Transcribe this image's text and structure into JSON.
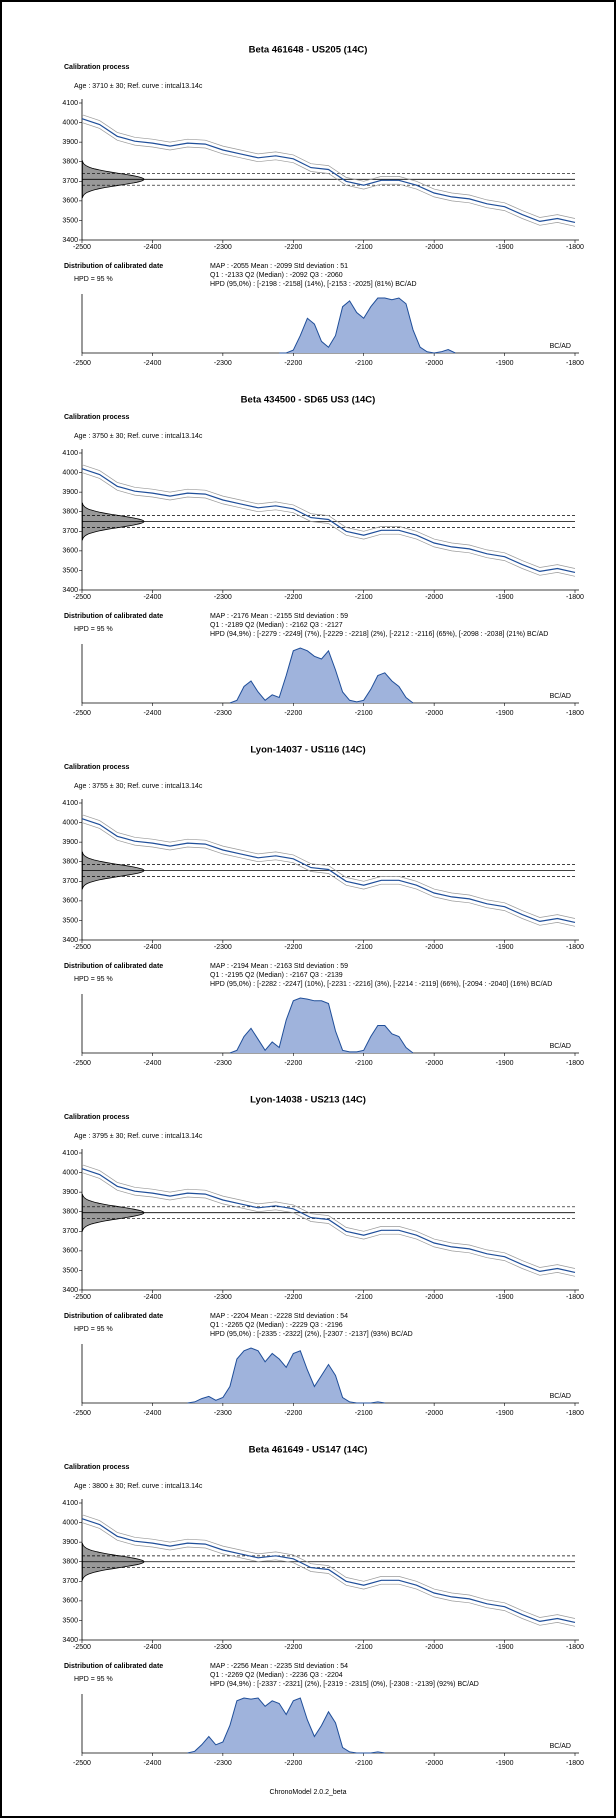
{
  "chart_data": [
    {
      "title": "Beta 461648 - US205 (14C)",
      "calibration": {
        "type": "line",
        "subtitle": "Calibration process",
        "note": "Age : 3710 ± 30; Ref. curve : intcal13.14c",
        "xlim": [
          -2500,
          -1800
        ],
        "ylim": [
          3400,
          4100
        ],
        "xticks": [
          -2500,
          -2400,
          -2300,
          -2200,
          -2100,
          -2000,
          -1900,
          -1800
        ],
        "yticks": [
          3400,
          3500,
          3600,
          3700,
          3800,
          3900,
          4000,
          4100
        ],
        "measurement": {
          "value": 3710,
          "error": 30,
          "color": "#999999"
        },
        "x": [
          -2500,
          -2475,
          -2450,
          -2425,
          -2400,
          -2375,
          -2350,
          -2325,
          -2300,
          -2275,
          -2250,
          -2225,
          -2200,
          -2175,
          -2150,
          -2125,
          -2100,
          -2075,
          -2050,
          -2025,
          -2000,
          -1975,
          -1950,
          -1925,
          -1900,
          -1875,
          -1850,
          -1825,
          -1800
        ],
        "series": [
          {
            "color": "#1f4e99",
            "band": 20,
            "band_color": "#9a9a9a",
            "values": [
              4020,
              3990,
              3930,
              3905,
              3895,
              3880,
              3895,
              3890,
              3860,
              3840,
              3820,
              3830,
              3815,
              3770,
              3760,
              3700,
              3680,
              3705,
              3705,
              3680,
              3640,
              3620,
              3610,
              3585,
              3570,
              3530,
              3495,
              3510,
              3490
            ]
          }
        ]
      },
      "distribution": {
        "type": "area",
        "subtitle": "Distribution of calibrated date",
        "hpd_label": "HPD = 95 %",
        "unit_label": "BC/AD",
        "stats": [
          "MAP : -2055 Mean : -2099 Std deviation : 51",
          "Q1 : -2133 Q2 (Median) : -2092 Q3 : -2060",
          "HPD (95,0%) : [-2198 : -2158] (14%), [-2153 : -2025] (81%) BC/AD"
        ],
        "xlim": [
          -2500,
          -1800
        ],
        "xticks": [
          -2500,
          -2400,
          -2300,
          -2200,
          -2100,
          -2000,
          -1900,
          -1800
        ],
        "color": "#9fb3dc",
        "line_color": "#1f4e99",
        "x": [
          -2220,
          -2210,
          -2200,
          -2190,
          -2180,
          -2170,
          -2160,
          -2150,
          -2140,
          -2130,
          -2120,
          -2110,
          -2100,
          -2090,
          -2080,
          -2070,
          -2060,
          -2050,
          -2040,
          -2030,
          -2020,
          -2010,
          -2000,
          -1990,
          -1980,
          -1970
        ],
        "values": [
          0,
          0,
          0.05,
          0.3,
          0.6,
          0.5,
          0.2,
          0.1,
          0.3,
          0.8,
          0.9,
          0.7,
          0.6,
          0.8,
          0.95,
          0.95,
          0.92,
          0.95,
          0.85,
          0.4,
          0.1,
          0.02,
          0,
          0.02,
          0.06,
          0
        ]
      }
    },
    {
      "title": "Beta 434500 - SD65 US3 (14C)",
      "calibration": {
        "type": "line",
        "subtitle": "Calibration process",
        "note": "Age : 3750 ± 30; Ref. curve : intcal13.14c",
        "xlim": [
          -2500,
          -1800
        ],
        "ylim": [
          3400,
          4100
        ],
        "xticks": [
          -2500,
          -2400,
          -2300,
          -2200,
          -2100,
          -2000,
          -1900,
          -1800
        ],
        "yticks": [
          3400,
          3500,
          3600,
          3700,
          3800,
          3900,
          4000,
          4100
        ],
        "measurement": {
          "value": 3750,
          "error": 30,
          "color": "#999999"
        },
        "x": [
          -2500,
          -2475,
          -2450,
          -2425,
          -2400,
          -2375,
          -2350,
          -2325,
          -2300,
          -2275,
          -2250,
          -2225,
          -2200,
          -2175,
          -2150,
          -2125,
          -2100,
          -2075,
          -2050,
          -2025,
          -2000,
          -1975,
          -1950,
          -1925,
          -1900,
          -1875,
          -1850,
          -1825,
          -1800
        ],
        "series": [
          {
            "color": "#1f4e99",
            "band": 20,
            "band_color": "#9a9a9a",
            "values": [
              4020,
              3990,
              3930,
              3905,
              3895,
              3880,
              3895,
              3890,
              3860,
              3840,
              3820,
              3830,
              3815,
              3770,
              3760,
              3700,
              3680,
              3705,
              3705,
              3680,
              3640,
              3620,
              3610,
              3585,
              3570,
              3530,
              3495,
              3510,
              3490
            ]
          }
        ]
      },
      "distribution": {
        "type": "area",
        "subtitle": "Distribution of calibrated date",
        "hpd_label": "HPD = 95 %",
        "unit_label": "BC/AD",
        "stats": [
          "MAP : -2176 Mean : -2155 Std deviation : 59",
          "Q1 : -2189 Q2 (Median) : -2162 Q3 : -2127",
          "HPD (94,9%) : [-2279 : -2249] (7%), [-2229 : -2218] (2%), [-2212 : -2116] (65%), [-2098 : -2038] (21%) BC/AD"
        ],
        "xlim": [
          -2500,
          -1800
        ],
        "xticks": [
          -2500,
          -2400,
          -2300,
          -2200,
          -2100,
          -2000,
          -1900,
          -1800
        ],
        "color": "#9fb3dc",
        "line_color": "#1f4e99",
        "x": [
          -2290,
          -2280,
          -2270,
          -2260,
          -2250,
          -2240,
          -2230,
          -2220,
          -2210,
          -2200,
          -2190,
          -2180,
          -2170,
          -2160,
          -2150,
          -2140,
          -2130,
          -2120,
          -2110,
          -2100,
          -2090,
          -2080,
          -2070,
          -2060,
          -2050,
          -2040,
          -2030
        ],
        "values": [
          0,
          0.05,
          0.3,
          0.4,
          0.2,
          0.05,
          0.15,
          0.1,
          0.5,
          0.95,
          1.0,
          0.95,
          0.85,
          0.8,
          0.95,
          0.6,
          0.2,
          0.05,
          0.02,
          0.05,
          0.25,
          0.5,
          0.55,
          0.4,
          0.3,
          0.1,
          0
        ]
      }
    },
    {
      "title": "Lyon-14037 - US116 (14C)",
      "calibration": {
        "type": "line",
        "subtitle": "Calibration process",
        "note": "Age : 3755 ± 30; Ref. curve : intcal13.14c",
        "xlim": [
          -2500,
          -1800
        ],
        "ylim": [
          3400,
          4100
        ],
        "xticks": [
          -2500,
          -2400,
          -2300,
          -2200,
          -2100,
          -2000,
          -1900,
          -1800
        ],
        "yticks": [
          3400,
          3500,
          3600,
          3700,
          3800,
          3900,
          4000,
          4100
        ],
        "measurement": {
          "value": 3755,
          "error": 30,
          "color": "#999999"
        },
        "x": [
          -2500,
          -2475,
          -2450,
          -2425,
          -2400,
          -2375,
          -2350,
          -2325,
          -2300,
          -2275,
          -2250,
          -2225,
          -2200,
          -2175,
          -2150,
          -2125,
          -2100,
          -2075,
          -2050,
          -2025,
          -2000,
          -1975,
          -1950,
          -1925,
          -1900,
          -1875,
          -1850,
          -1825,
          -1800
        ],
        "series": [
          {
            "color": "#1f4e99",
            "band": 20,
            "band_color": "#9a9a9a",
            "values": [
              4020,
              3990,
              3930,
              3905,
              3895,
              3880,
              3895,
              3890,
              3860,
              3840,
              3820,
              3830,
              3815,
              3770,
              3760,
              3700,
              3680,
              3705,
              3705,
              3680,
              3640,
              3620,
              3610,
              3585,
              3570,
              3530,
              3495,
              3510,
              3490
            ]
          }
        ]
      },
      "distribution": {
        "type": "area",
        "subtitle": "Distribution of calibrated date",
        "hpd_label": "HPD = 95 %",
        "unit_label": "BC/AD",
        "stats": [
          "MAP : -2194 Mean : -2163 Std deviation : 59",
          "Q1 : -2195 Q2 (Median) : -2167 Q3 : -2139",
          "HPD (95,0%) : [-2282 : -2247] (10%), [-2231 : -2216] (3%), [-2214 : -2119] (66%), [-2094 : -2040] (16%) BC/AD"
        ],
        "xlim": [
          -2500,
          -1800
        ],
        "xticks": [
          -2500,
          -2400,
          -2300,
          -2200,
          -2100,
          -2000,
          -1900,
          -1800
        ],
        "color": "#9fb3dc",
        "line_color": "#1f4e99",
        "x": [
          -2290,
          -2280,
          -2270,
          -2260,
          -2250,
          -2240,
          -2230,
          -2220,
          -2210,
          -2200,
          -2190,
          -2180,
          -2170,
          -2160,
          -2150,
          -2140,
          -2130,
          -2120,
          -2110,
          -2100,
          -2090,
          -2080,
          -2070,
          -2060,
          -2050,
          -2040,
          -2030
        ],
        "values": [
          0,
          0.05,
          0.3,
          0.45,
          0.25,
          0.05,
          0.2,
          0.1,
          0.6,
          0.95,
          1.0,
          0.98,
          0.95,
          0.95,
          0.9,
          0.4,
          0.05,
          0.02,
          0.02,
          0.05,
          0.3,
          0.5,
          0.5,
          0.35,
          0.3,
          0.1,
          0
        ]
      }
    },
    {
      "title": "Lyon-14038 - US213 (14C)",
      "calibration": {
        "type": "line",
        "subtitle": "Calibration process",
        "note": "Age : 3795 ± 30; Ref. curve : intcal13.14c",
        "xlim": [
          -2500,
          -1800
        ],
        "ylim": [
          3400,
          4100
        ],
        "xticks": [
          -2500,
          -2400,
          -2300,
          -2200,
          -2100,
          -2000,
          -1900,
          -1800
        ],
        "yticks": [
          3400,
          3500,
          3600,
          3700,
          3800,
          3900,
          4000,
          4100
        ],
        "measurement": {
          "value": 3795,
          "error": 30,
          "color": "#999999"
        },
        "x": [
          -2500,
          -2475,
          -2450,
          -2425,
          -2400,
          -2375,
          -2350,
          -2325,
          -2300,
          -2275,
          -2250,
          -2225,
          -2200,
          -2175,
          -2150,
          -2125,
          -2100,
          -2075,
          -2050,
          -2025,
          -2000,
          -1975,
          -1950,
          -1925,
          -1900,
          -1875,
          -1850,
          -1825,
          -1800
        ],
        "series": [
          {
            "color": "#1f4e99",
            "band": 20,
            "band_color": "#9a9a9a",
            "values": [
              4020,
              3990,
              3930,
              3905,
              3895,
              3880,
              3895,
              3890,
              3860,
              3840,
              3820,
              3830,
              3815,
              3770,
              3760,
              3700,
              3680,
              3705,
              3705,
              3680,
              3640,
              3620,
              3610,
              3585,
              3570,
              3530,
              3495,
              3510,
              3490
            ]
          }
        ]
      },
      "distribution": {
        "type": "area",
        "subtitle": "Distribution of calibrated date",
        "hpd_label": "HPD = 95 %",
        "unit_label": "BC/AD",
        "stats": [
          "MAP : -2204 Mean : -2228 Std deviation : 54",
          "Q1 : -2265 Q2 (Median) : -2229 Q3 : -2196",
          "HPD (95,0%) : [-2335 : -2322] (2%), [-2307 : -2137] (93%) BC/AD"
        ],
        "xlim": [
          -2500,
          -1800
        ],
        "xticks": [
          -2500,
          -2400,
          -2300,
          -2200,
          -2100,
          -2000,
          -1900,
          -1800
        ],
        "color": "#9fb3dc",
        "line_color": "#1f4e99",
        "x": [
          -2350,
          -2340,
          -2330,
          -2320,
          -2310,
          -2300,
          -2290,
          -2280,
          -2270,
          -2260,
          -2250,
          -2240,
          -2230,
          -2220,
          -2210,
          -2200,
          -2190,
          -2180,
          -2170,
          -2160,
          -2150,
          -2140,
          -2130,
          -2120,
          -2110,
          -2100,
          -2090,
          -2080,
          -2070
        ],
        "values": [
          0,
          0.02,
          0.08,
          0.12,
          0.05,
          0.1,
          0.3,
          0.8,
          0.95,
          1.0,
          0.95,
          0.75,
          0.9,
          0.8,
          0.65,
          0.9,
          0.95,
          0.6,
          0.3,
          0.5,
          0.7,
          0.5,
          0.1,
          0.02,
          0,
          0,
          0,
          0.02,
          0
        ]
      }
    },
    {
      "title": "Beta 461649 - US147 (14C)",
      "calibration": {
        "type": "line",
        "subtitle": "Calibration process",
        "note": "Age : 3800 ± 30; Ref. curve : intcal13.14c",
        "xlim": [
          -2500,
          -1800
        ],
        "ylim": [
          3400,
          4100
        ],
        "xticks": [
          -2500,
          -2400,
          -2300,
          -2200,
          -2100,
          -2000,
          -1900,
          -1800
        ],
        "yticks": [
          3400,
          3500,
          3600,
          3700,
          3800,
          3900,
          4000,
          4100
        ],
        "measurement": {
          "value": 3800,
          "error": 30,
          "color": "#999999"
        },
        "x": [
          -2500,
          -2475,
          -2450,
          -2425,
          -2400,
          -2375,
          -2350,
          -2325,
          -2300,
          -2275,
          -2250,
          -2225,
          -2200,
          -2175,
          -2150,
          -2125,
          -2100,
          -2075,
          -2050,
          -2025,
          -2000,
          -1975,
          -1950,
          -1925,
          -1900,
          -1875,
          -1850,
          -1825,
          -1800
        ],
        "series": [
          {
            "color": "#1f4e99",
            "band": 20,
            "band_color": "#9a9a9a",
            "values": [
              4020,
              3990,
              3930,
              3905,
              3895,
              3880,
              3895,
              3890,
              3860,
              3840,
              3820,
              3830,
              3815,
              3770,
              3760,
              3700,
              3680,
              3705,
              3705,
              3680,
              3640,
              3620,
              3610,
              3585,
              3570,
              3530,
              3495,
              3510,
              3490
            ]
          }
        ]
      },
      "distribution": {
        "type": "area",
        "subtitle": "Distribution of calibrated date",
        "hpd_label": "HPD = 95 %",
        "unit_label": "BC/AD",
        "stats": [
          "MAP : -2256 Mean : -2235 Std deviation : 54",
          "Q1 : -2269 Q2 (Median) : -2236 Q3 : -2204",
          "HPD (94,9%) : [-2337 : -2321] (2%), [-2319 : -2315] (0%), [-2308 : -2139] (92%) BC/AD"
        ],
        "xlim": [
          -2500,
          -1800
        ],
        "xticks": [
          -2500,
          -2400,
          -2300,
          -2200,
          -2100,
          -2000,
          -1900,
          -1800
        ],
        "color": "#9fb3dc",
        "line_color": "#1f4e99",
        "x": [
          -2350,
          -2340,
          -2330,
          -2320,
          -2310,
          -2300,
          -2290,
          -2280,
          -2270,
          -2260,
          -2250,
          -2240,
          -2230,
          -2220,
          -2210,
          -2200,
          -2190,
          -2180,
          -2170,
          -2160,
          -2150,
          -2140,
          -2130,
          -2120,
          -2110,
          -2100,
          -2090,
          -2080,
          -2070
        ],
        "values": [
          0,
          0.03,
          0.15,
          0.3,
          0.15,
          0.2,
          0.5,
          0.95,
          1.0,
          0.98,
          1.0,
          0.85,
          0.95,
          0.9,
          0.7,
          0.95,
          1.0,
          0.6,
          0.3,
          0.5,
          0.75,
          0.55,
          0.1,
          0.02,
          0,
          0,
          0,
          0.02,
          0
        ]
      }
    }
  ],
  "footer": "ChronoModel 2.0.2_beta"
}
